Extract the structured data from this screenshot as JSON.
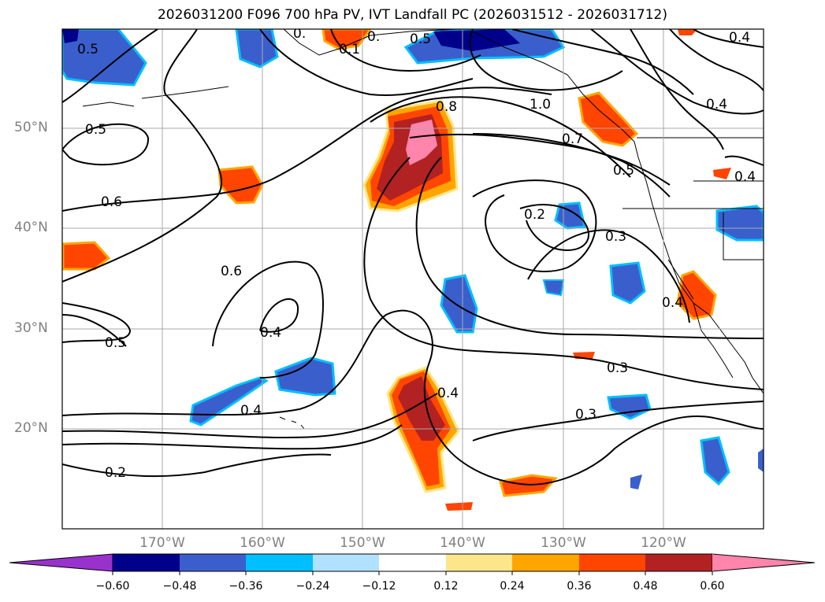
{
  "title": "2026031200 F096 700 hPa PV, IVT Landfall PC (2026031512 - 2026031712)",
  "map": {
    "projection": "lat-lon",
    "extent_lon": [
      -180,
      -110
    ],
    "extent_lat": [
      10,
      60
    ],
    "gridlines": true,
    "lat_labels": [
      "50°N",
      "40°N",
      "30°N",
      "20°N"
    ],
    "lon_labels": [
      "170°W",
      "160°W",
      "150°W",
      "140°W",
      "130°W",
      "120°W"
    ],
    "contour_labels": [
      "0.5",
      "0.5",
      "0.5",
      "0.6",
      "0.6",
      "0.5",
      "0.4",
      "0.4",
      "0.2",
      "0.8",
      "0.2",
      "0.3",
      "0.4",
      "0.3",
      "0.3",
      "0.7",
      "0.5",
      "0.4",
      "1.0",
      "0.4",
      "0.4",
      "0.",
      "0.",
      "0.1",
      "0.4"
    ]
  },
  "colorbar": {
    "ticks": [
      "−0.60",
      "−0.48",
      "−0.36",
      "−0.24",
      "−0.12",
      "0.12",
      "0.24",
      "0.36",
      "0.48",
      "0.60"
    ],
    "colors": [
      "#9932cc",
      "#00008b",
      "#3a5fcd",
      "#00bfff",
      "#b0e2ff",
      "#ffffff",
      "#fce68a",
      "#ffa500",
      "#ff4500",
      "#b22222",
      "#ff85ad"
    ],
    "extend": "both"
  }
}
